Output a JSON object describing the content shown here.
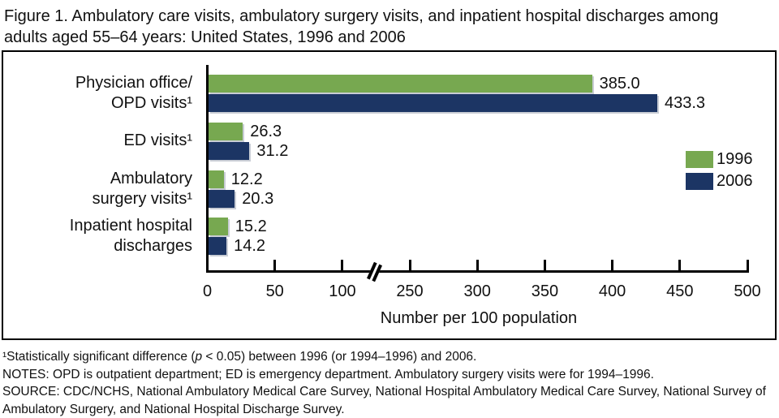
{
  "figure": {
    "title": "Figure 1.  Ambulatory care visits, ambulatory surgery visits, and inpatient hospital discharges among adults aged 55–64 years: United States, 1996 and 2006"
  },
  "chart_data": {
    "type": "bar",
    "orientation": "horizontal",
    "categories": [
      {
        "line1": "Physician office/",
        "line2": "OPD visits¹"
      },
      {
        "line1": "ED visits¹",
        "line2": ""
      },
      {
        "line1": "Ambulatory",
        "line2": "surgery visits¹"
      },
      {
        "line1": "Inpatient hospital",
        "line2": "discharges"
      }
    ],
    "series": [
      {
        "name": "1996",
        "color": "#77A850",
        "values": [
          385.0,
          26.3,
          12.2,
          15.2
        ]
      },
      {
        "name": "2006",
        "color": "#1C3564",
        "values": [
          433.3,
          31.2,
          20.3,
          14.2
        ]
      }
    ],
    "xlabel": "Number per 100 population",
    "x_ticks": [
      0,
      50,
      100,
      250,
      300,
      350,
      400,
      450,
      500
    ],
    "xlim": [
      0,
      500
    ],
    "axis_break": {
      "between": [
        100,
        250
      ]
    },
    "grid": false,
    "legend_position": "right",
    "value_label_decimals": 1
  },
  "footnotes": {
    "significance_pre": "¹Statistically significant difference (",
    "significance_italic": "p",
    "significance_post": " < 0.05) between 1996 (or 1994–1996) and 2006.",
    "notes": "NOTES: OPD is outpatient department; ED is emergency department. Ambulatory surgery visits were for 1994–1996.",
    "source": "SOURCE: CDC/NCHS, National Ambulatory Medical Care Survey, National Hospital Ambulatory Medical Care Survey, National Survey of Ambulatory Surgery, and National Hospital Discharge Survey."
  }
}
